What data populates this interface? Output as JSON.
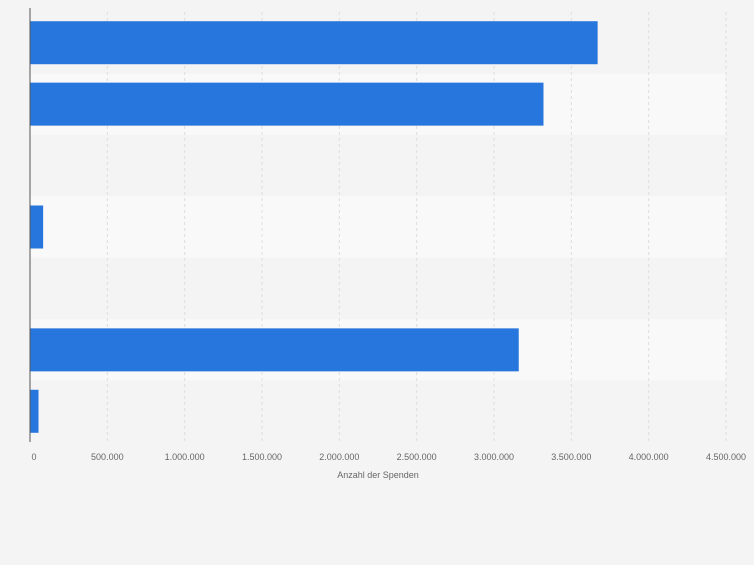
{
  "chart_data": {
    "type": "bar",
    "orientation": "horizontal",
    "title": "",
    "xlabel": "Anzahl der Spenden",
    "ylabel": "",
    "xlim": [
      0,
      4500000
    ],
    "x_ticks": [
      0,
      500000,
      1000000,
      1500000,
      2000000,
      2500000,
      3000000,
      3500000,
      4000000,
      4500000
    ],
    "x_tick_labels": [
      "0",
      "500.000",
      "1.000.000",
      "1.500.000",
      "2.000.000",
      "2.500.000",
      "3.000.000",
      "3.500.000",
      "4.000.000",
      "4.500.000"
    ],
    "categories": [
      "",
      "",
      "",
      "",
      "",
      "",
      ""
    ],
    "values": [
      3670000,
      3320000,
      0,
      85000,
      0,
      3160000,
      55000
    ],
    "grid": true,
    "legend": "none",
    "colors": {
      "bar": "#2776dd",
      "row_band_light": "#f9f9f9",
      "row_band_dark": "#f4f4f4",
      "grid": "#dedede",
      "axis": "#555555",
      "text": "#666666"
    }
  }
}
